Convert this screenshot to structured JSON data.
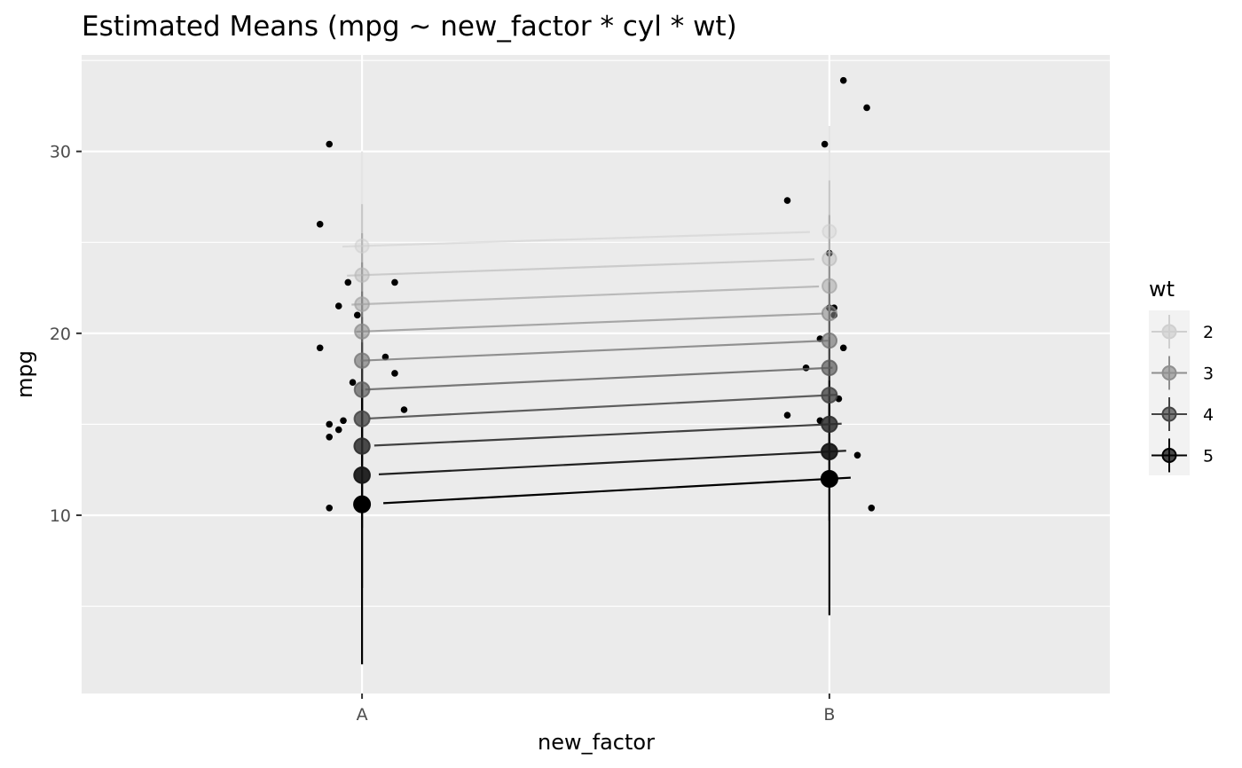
{
  "chart_data": {
    "type": "scatter",
    "title": "Estimated Means (mpg ~ new_factor * cyl * wt)",
    "xlabel": "new_factor",
    "ylabel": "mpg",
    "categories": [
      "A",
      "B"
    ],
    "ylim": [
      0.2,
      35.3
    ],
    "y_ticks": [
      10,
      20,
      30
    ],
    "grid": true,
    "legend": {
      "title": "wt",
      "placement": "right",
      "entries": [
        {
          "label": "2",
          "shade": "#cfcfcf"
        },
        {
          "label": "3",
          "shade": "#8f8f8f"
        },
        {
          "label": "4",
          "shade": "#444444"
        },
        {
          "label": "5",
          "shade": "#000000"
        }
      ]
    },
    "estimated_means": {
      "A": [
        {
          "wt": 1.5,
          "mean": 24.8,
          "ci": [
            22.4,
            30.0
          ]
        },
        {
          "wt": 1.9,
          "mean": 23.2,
          "ci": [
            18.9,
            27.1
          ]
        },
        {
          "wt": 2.3,
          "mean": 21.6,
          "ci": [
            17.8,
            25.5
          ]
        },
        {
          "wt": 2.7,
          "mean": 20.1,
          "ci": [
            16.5,
            23.9
          ]
        },
        {
          "wt": 3.1,
          "mean": 18.5,
          "ci": [
            14.8,
            22.3
          ]
        },
        {
          "wt": 3.5,
          "mean": 16.9,
          "ci": [
            13.0,
            20.9
          ]
        },
        {
          "wt": 3.9,
          "mean": 15.3,
          "ci": [
            11.2,
            19.5
          ]
        },
        {
          "wt": 4.3,
          "mean": 13.8,
          "ci": [
            9.3,
            18.2
          ]
        },
        {
          "wt": 4.7,
          "mean": 12.2,
          "ci": [
            6.0,
            17.2
          ]
        },
        {
          "wt": 5.1,
          "mean": 10.6,
          "ci": [
            1.8,
            16.9
          ]
        }
      ],
      "B": [
        {
          "wt": 1.5,
          "mean": 25.6,
          "ci": [
            22.2,
            31.4
          ]
        },
        {
          "wt": 1.9,
          "mean": 24.1,
          "ci": [
            21.0,
            28.4
          ]
        },
        {
          "wt": 2.3,
          "mean": 22.6,
          "ci": [
            19.7,
            26.5
          ]
        },
        {
          "wt": 2.7,
          "mean": 21.1,
          "ci": [
            18.4,
            24.5
          ]
        },
        {
          "wt": 3.1,
          "mean": 19.6,
          "ci": [
            17.0,
            22.8
          ]
        },
        {
          "wt": 3.5,
          "mean": 18.1,
          "ci": [
            15.5,
            21.2
          ]
        },
        {
          "wt": 3.9,
          "mean": 16.6,
          "ci": [
            13.8,
            19.8
          ]
        },
        {
          "wt": 4.3,
          "mean": 15.0,
          "ci": [
            11.9,
            18.5
          ]
        },
        {
          "wt": 4.7,
          "mean": 13.5,
          "ci": [
            9.7,
            17.4
          ]
        },
        {
          "wt": 5.1,
          "mean": 12.0,
          "ci": [
            4.5,
            16.6
          ]
        }
      ]
    },
    "observations": [
      {
        "group": "A",
        "x": 0.93,
        "y": 30.4
      },
      {
        "group": "A",
        "x": 0.91,
        "y": 26.0
      },
      {
        "group": "A",
        "x": 0.97,
        "y": 22.8
      },
      {
        "group": "A",
        "x": 1.07,
        "y": 22.8
      },
      {
        "group": "A",
        "x": 0.95,
        "y": 21.5
      },
      {
        "group": "A",
        "x": 0.99,
        "y": 21.0
      },
      {
        "group": "A",
        "x": 0.91,
        "y": 19.2
      },
      {
        "group": "A",
        "x": 1.05,
        "y": 18.7
      },
      {
        "group": "A",
        "x": 1.07,
        "y": 17.8
      },
      {
        "group": "A",
        "x": 0.98,
        "y": 17.3
      },
      {
        "group": "A",
        "x": 1.09,
        "y": 15.8
      },
      {
        "group": "A",
        "x": 0.96,
        "y": 15.2
      },
      {
        "group": "A",
        "x": 0.93,
        "y": 15.0
      },
      {
        "group": "A",
        "x": 0.95,
        "y": 14.7
      },
      {
        "group": "A",
        "x": 0.93,
        "y": 14.3
      },
      {
        "group": "A",
        "x": 0.93,
        "y": 10.4
      },
      {
        "group": "B",
        "x": 2.03,
        "y": 33.9
      },
      {
        "group": "B",
        "x": 2.08,
        "y": 32.4
      },
      {
        "group": "B",
        "x": 1.99,
        "y": 30.4
      },
      {
        "group": "B",
        "x": 1.91,
        "y": 27.3
      },
      {
        "group": "B",
        "x": 2.0,
        "y": 24.4
      },
      {
        "group": "B",
        "x": 2.01,
        "y": 21.4
      },
      {
        "group": "B",
        "x": 2.0,
        "y": 21.4
      },
      {
        "group": "B",
        "x": 2.01,
        "y": 21.0
      },
      {
        "group": "B",
        "x": 1.98,
        "y": 19.7
      },
      {
        "group": "B",
        "x": 2.03,
        "y": 19.2
      },
      {
        "group": "B",
        "x": 1.95,
        "y": 18.1
      },
      {
        "group": "B",
        "x": 2.02,
        "y": 16.4
      },
      {
        "group": "B",
        "x": 1.91,
        "y": 15.5
      },
      {
        "group": "B",
        "x": 1.98,
        "y": 15.2
      },
      {
        "group": "B",
        "x": 2.06,
        "y": 13.3
      },
      {
        "group": "B",
        "x": 2.09,
        "y": 10.4
      }
    ]
  }
}
